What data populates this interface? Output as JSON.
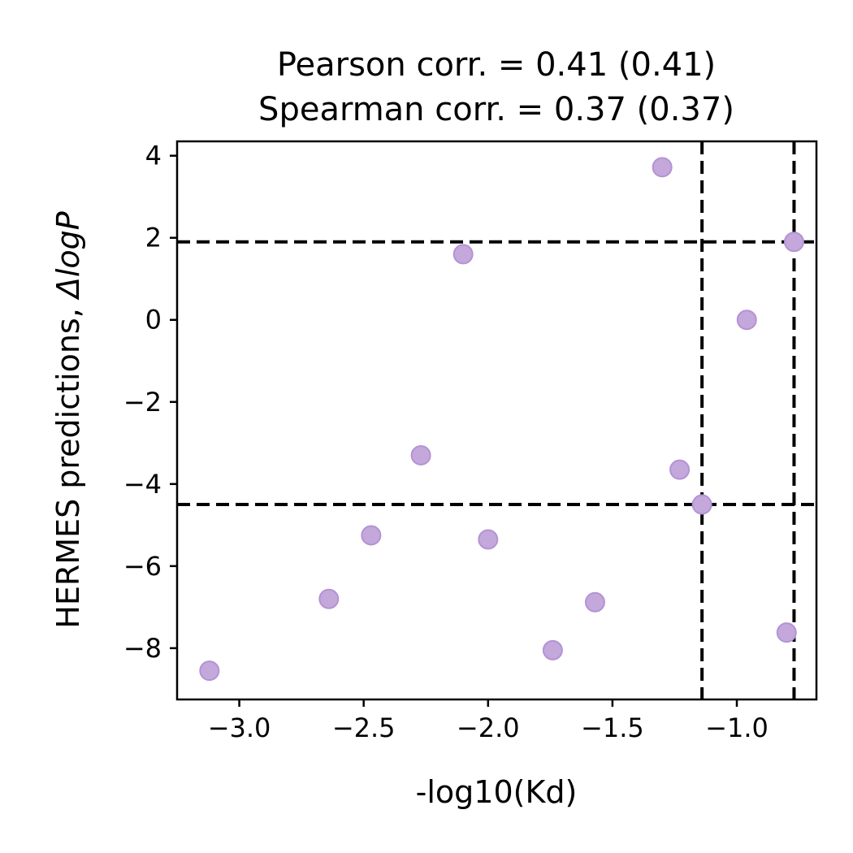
{
  "chart_data": {
    "type": "scatter",
    "title_lines": [
      "Pearson corr. = 0.41 (0.41)",
      "Spearman corr. = 0.37 (0.37)"
    ],
    "xlabel": "-log10(Kd)",
    "ylabel_text": "HERMES predictions, ",
    "ylabel_math": "ΔlogP",
    "xlim": [
      -3.25,
      -0.68
    ],
    "ylim": [
      -9.25,
      4.35
    ],
    "x_ticks": [
      {
        "value": -3.0,
        "label": "−3.0"
      },
      {
        "value": -2.5,
        "label": "−2.5"
      },
      {
        "value": -2.0,
        "label": "−2.0"
      },
      {
        "value": -1.5,
        "label": "−1.5"
      },
      {
        "value": -1.0,
        "label": "−1.0"
      }
    ],
    "y_ticks": [
      {
        "value": 4,
        "label": "4"
      },
      {
        "value": 2,
        "label": "2"
      },
      {
        "value": 0,
        "label": "0"
      },
      {
        "value": -2,
        "label": "−2"
      },
      {
        "value": -4,
        "label": "−4"
      },
      {
        "value": -6,
        "label": "−6"
      },
      {
        "value": -8,
        "label": "−8"
      }
    ],
    "hlines": [
      1.9,
      -4.5
    ],
    "vlines": [
      -1.14,
      -0.77
    ],
    "points": [
      {
        "x": -3.12,
        "y": -8.55
      },
      {
        "x": -2.64,
        "y": -6.8
      },
      {
        "x": -2.47,
        "y": -5.25
      },
      {
        "x": -2.27,
        "y": -3.3
      },
      {
        "x": -2.1,
        "y": 1.6
      },
      {
        "x": -2.0,
        "y": -5.35
      },
      {
        "x": -1.74,
        "y": -8.05
      },
      {
        "x": -1.57,
        "y": -6.88
      },
      {
        "x": -1.3,
        "y": 3.72
      },
      {
        "x": -1.23,
        "y": -3.65
      },
      {
        "x": -1.14,
        "y": -4.5
      },
      {
        "x": -0.96,
        "y": 0.0
      },
      {
        "x": -0.8,
        "y": -7.62
      },
      {
        "x": -0.77,
        "y": 1.9
      }
    ],
    "point_color": "#c4a8dc",
    "grid": false,
    "legend": "none"
  }
}
